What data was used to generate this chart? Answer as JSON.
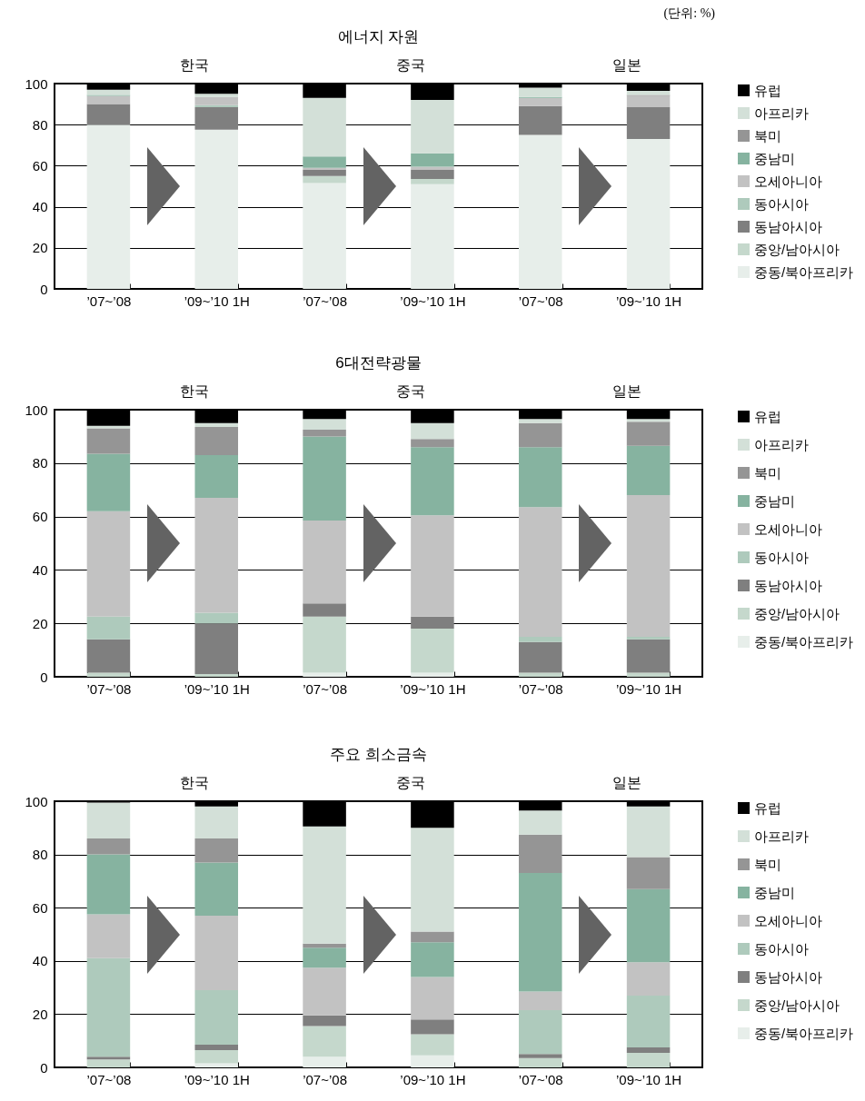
{
  "chart_data": [
    {
      "type": "bar",
      "stacked": true,
      "title": "에너지 자원",
      "categories": [
        "’07~’08",
        "’09~’10 1H",
        "’07~’08",
        "’09~’10 1H",
        "’07~’08",
        "’09~’10 1H"
      ],
      "annotations": [
        "한국",
        "중국",
        "일본",
        "(단위: %)"
      ],
      "ylim": [
        0,
        100
      ],
      "yticks": [
        0,
        20,
        40,
        60,
        80,
        100
      ],
      "grid": "y",
      "legend": "right",
      "series": [
        {
          "name": "중동/북아프리카",
          "color": "#e7eeea",
          "values": [
            80,
            77.5,
            51.5,
            51,
            75,
            73
          ]
        },
        {
          "name": "중앙/남아시아",
          "color": "#c5d8cc",
          "values": [
            0,
            0,
            3.5,
            2.5,
            0,
            0
          ]
        },
        {
          "name": "동남아시아",
          "color": "#7f7f7f",
          "values": [
            10,
            11,
            3,
            4.5,
            14,
            15.5
          ]
        },
        {
          "name": "동아시아",
          "color": "#aecabc",
          "values": [
            0,
            1,
            0,
            0,
            0,
            0
          ]
        },
        {
          "name": "오세아니아",
          "color": "#c2c2c2",
          "values": [
            4,
            4,
            1,
            1.5,
            4,
            5.5
          ]
        },
        {
          "name": "중남미",
          "color": "#86b3a0",
          "values": [
            0.5,
            0,
            5.5,
            6.5,
            0.5,
            0
          ]
        },
        {
          "name": "북미",
          "color": "#959595",
          "values": [
            0,
            0,
            0,
            0,
            0,
            0.5
          ]
        },
        {
          "name": "아프리카",
          "color": "#d3e0d8",
          "values": [
            2.5,
            1.5,
            28.5,
            26,
            4.5,
            2
          ]
        },
        {
          "name": "유럽",
          "color": "#000000",
          "values": [
            3,
            5,
            7,
            8,
            2,
            3.5
          ]
        }
      ]
    },
    {
      "type": "bar",
      "stacked": true,
      "title": "6대전략광물",
      "categories": [
        "’07~’08",
        "’09~’10 1H",
        "’07~’08",
        "’09~’10 1H",
        "’07~’08",
        "’09~’10 1H"
      ],
      "annotations": [
        "한국",
        "중국",
        "일본"
      ],
      "ylim": [
        0,
        100
      ],
      "yticks": [
        0,
        20,
        40,
        60,
        80,
        100
      ],
      "grid": "y",
      "legend": "right",
      "series": [
        {
          "name": "중동/북아프리카",
          "color": "#e7eeea",
          "values": [
            0,
            0,
            1.5,
            1.5,
            0,
            0
          ]
        },
        {
          "name": "중앙/남아시아",
          "color": "#c5d8cc",
          "values": [
            1.5,
            1,
            21,
            16.5,
            1.5,
            1.5
          ]
        },
        {
          "name": "동남아시아",
          "color": "#7f7f7f",
          "values": [
            12.5,
            19,
            5,
            4.5,
            11.5,
            12.5
          ]
        },
        {
          "name": "동아시아",
          "color": "#aecabc",
          "values": [
            8.5,
            4,
            0,
            0,
            2,
            1
          ]
        },
        {
          "name": "오세아니아",
          "color": "#c2c2c2",
          "values": [
            39.5,
            43,
            31,
            38,
            48.5,
            53
          ]
        },
        {
          "name": "중남미",
          "color": "#86b3a0",
          "values": [
            21.5,
            16,
            31.5,
            25.5,
            22.5,
            18.5
          ]
        },
        {
          "name": "북미",
          "color": "#959595",
          "values": [
            9.5,
            10.5,
            2.5,
            3,
            9,
            9
          ]
        },
        {
          "name": "아프리카",
          "color": "#d3e0d8",
          "values": [
            1,
            1.5,
            4,
            6,
            1.5,
            1
          ]
        },
        {
          "name": "유럽",
          "color": "#000000",
          "values": [
            6,
            5,
            3.5,
            5,
            3.5,
            3.5
          ]
        }
      ]
    },
    {
      "type": "bar",
      "stacked": true,
      "title": "주요 희소금속",
      "categories": [
        "’07~’08",
        "’09~’10 1H",
        "’07~’08",
        "’09~’10 1H",
        "’07~’08",
        "’09~’10 1H"
      ],
      "annotations": [
        "한국",
        "중국",
        "일본"
      ],
      "ylim": [
        0,
        100
      ],
      "yticks": [
        0,
        20,
        40,
        60,
        80,
        100
      ],
      "grid": "y",
      "legend": "right",
      "series": [
        {
          "name": "중동/북아프리카",
          "color": "#e7eeea",
          "values": [
            0,
            1.5,
            4,
            4.5,
            0,
            0
          ]
        },
        {
          "name": "중앙/남아시아",
          "color": "#c5d8cc",
          "values": [
            3,
            5,
            11.5,
            8,
            3.5,
            5.5
          ]
        },
        {
          "name": "동남아시아",
          "color": "#7f7f7f",
          "values": [
            1,
            2,
            4,
            5.5,
            1.5,
            2
          ]
        },
        {
          "name": "동아시아",
          "color": "#aecabc",
          "values": [
            37,
            20.5,
            0,
            0,
            16.5,
            19.5
          ]
        },
        {
          "name": "오세아니아",
          "color": "#c2c2c2",
          "values": [
            16.5,
            28,
            18,
            16,
            7,
            12.5
          ]
        },
        {
          "name": "중남미",
          "color": "#86b3a0",
          "values": [
            22.5,
            20,
            7.5,
            13,
            44.5,
            27.5
          ]
        },
        {
          "name": "북미",
          "color": "#959595",
          "values": [
            6,
            9,
            1.5,
            4,
            14.5,
            12
          ]
        },
        {
          "name": "아프리카",
          "color": "#d3e0d8",
          "values": [
            13.5,
            12,
            44,
            39,
            9,
            19
          ]
        },
        {
          "name": "유럽",
          "color": "#000000",
          "values": [
            0.5,
            2,
            9.5,
            10,
            3.5,
            2
          ]
        }
      ]
    }
  ]
}
